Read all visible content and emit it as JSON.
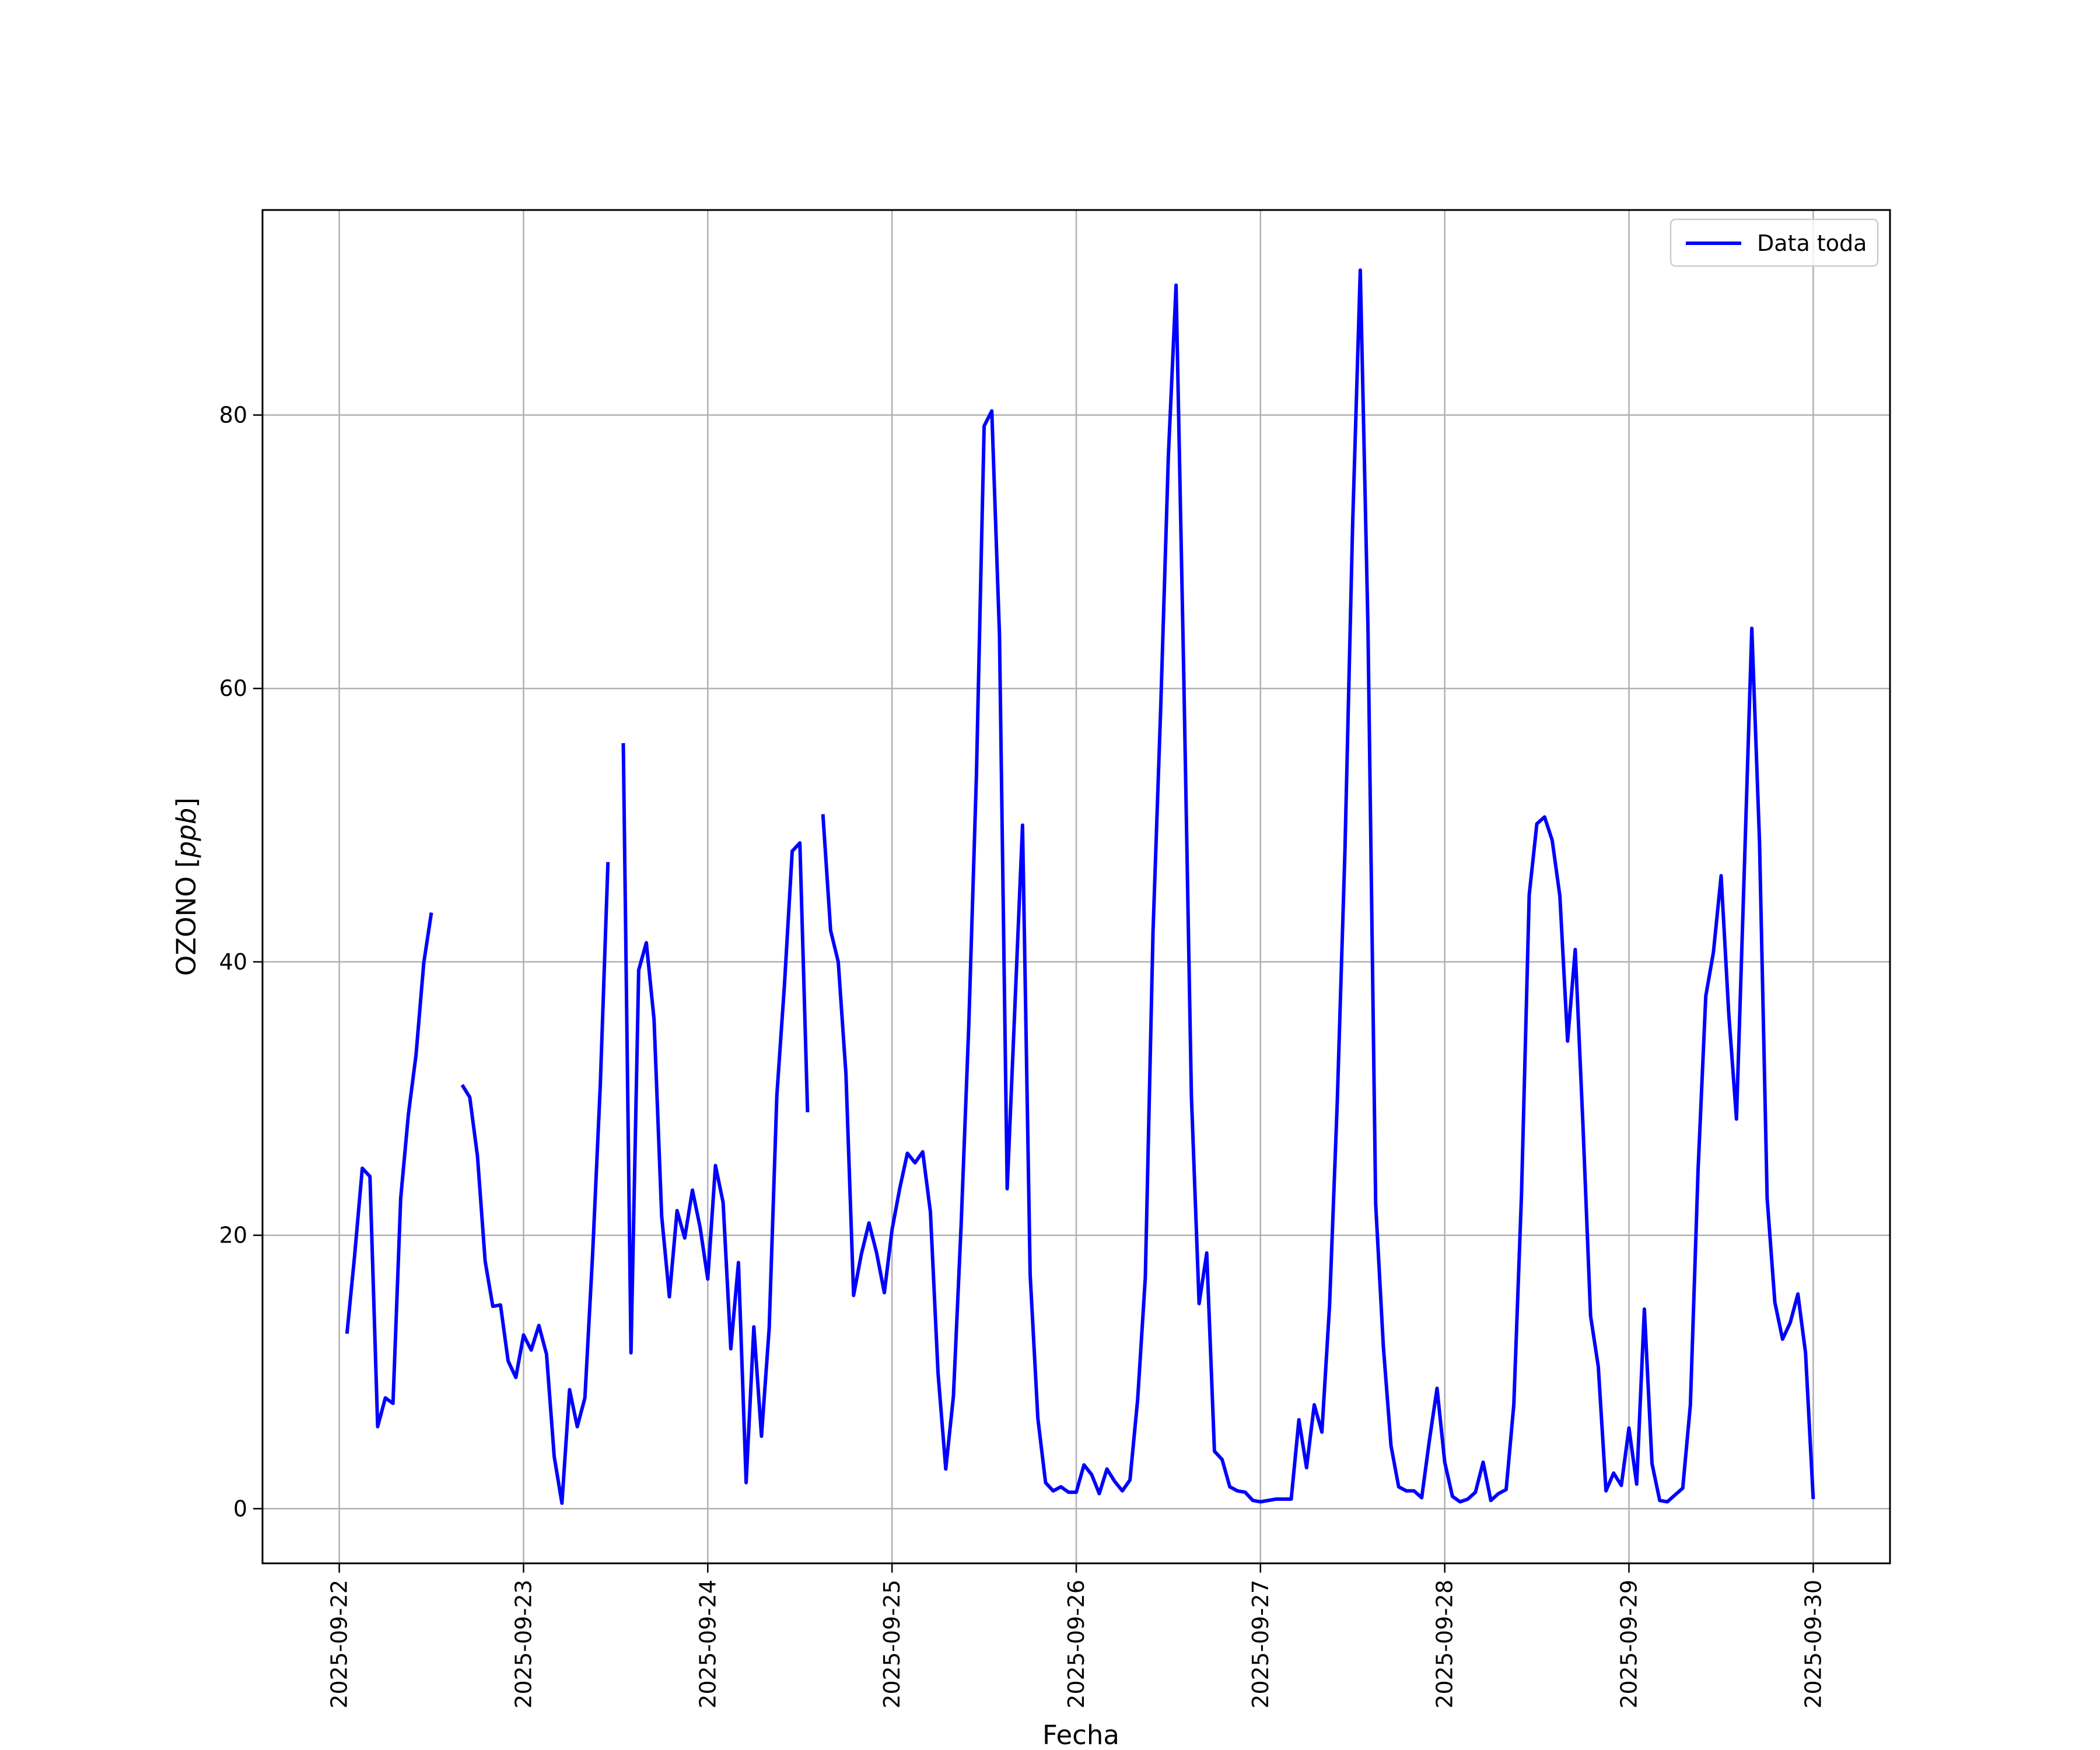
{
  "chart_data": {
    "type": "line",
    "title": "",
    "xlabel": "Fecha",
    "ylabel": "OZONO [ppb]",
    "ylabel_parts": {
      "text": "OZONO ",
      "unit_open": "[",
      "unit": "ppb",
      "unit_close": "]"
    },
    "xlim": [
      "2025-09-21T14:00",
      "2025-09-30T10:00"
    ],
    "ylim": [
      -4,
      95
    ],
    "x_ticks": [
      "2025-09-22",
      "2025-09-23",
      "2025-09-24",
      "2025-09-25",
      "2025-09-26",
      "2025-09-27",
      "2025-09-28",
      "2025-09-29",
      "2025-09-30"
    ],
    "y_ticks": [
      0,
      20,
      40,
      60,
      80
    ],
    "grid": true,
    "legend": {
      "position": "upper-right",
      "entries": [
        "Data toda"
      ]
    },
    "series": [
      {
        "name": "Data toda",
        "color": "#0000ff",
        "segments": [
          [
            [
              "2025-09-22T01:00",
              12.8
            ],
            [
              "2025-09-22T02:00",
              18.5
            ],
            [
              "2025-09-22T03:00",
              24.9
            ],
            [
              "2025-09-22T04:00",
              24.3
            ],
            [
              "2025-09-22T05:00",
              6.0
            ],
            [
              "2025-09-22T06:00",
              8.1
            ],
            [
              "2025-09-22T07:00",
              7.7
            ],
            [
              "2025-09-22T08:00",
              22.7
            ],
            [
              "2025-09-22T09:00",
              28.8
            ],
            [
              "2025-09-22T10:00",
              33.2
            ],
            [
              "2025-09-22T11:00",
              39.9
            ],
            [
              "2025-09-22T12:00",
              43.6
            ]
          ],
          [
            [
              "2025-09-22T16:00",
              31.0
            ],
            [
              "2025-09-22T17:00",
              30.1
            ],
            [
              "2025-09-22T18:00",
              25.8
            ],
            [
              "2025-09-22T19:00",
              18.1
            ],
            [
              "2025-09-22T20:00",
              14.8
            ],
            [
              "2025-09-22T21:00",
              14.9
            ],
            [
              "2025-09-22T22:00",
              10.8
            ],
            [
              "2025-09-22T23:00",
              9.6
            ],
            [
              "2025-09-23T00:00",
              12.7
            ],
            [
              "2025-09-23T01:00",
              11.6
            ],
            [
              "2025-09-23T02:00",
              13.4
            ],
            [
              "2025-09-23T03:00",
              11.3
            ],
            [
              "2025-09-23T04:00",
              3.8
            ],
            [
              "2025-09-23T05:00",
              0.4
            ],
            [
              "2025-09-23T06:00",
              8.7
            ],
            [
              "2025-09-23T07:00",
              6.0
            ],
            [
              "2025-09-23T08:00",
              8.1
            ],
            [
              "2025-09-23T09:00",
              18.6
            ],
            [
              "2025-09-23T10:00",
              31.0
            ],
            [
              "2025-09-23T11:00",
              47.3
            ]
          ],
          [
            [
              "2025-09-23T13:00",
              56.0
            ],
            [
              "2025-09-23T14:00",
              11.4
            ],
            [
              "2025-09-23T15:00",
              39.4
            ],
            [
              "2025-09-23T16:00",
              41.4
            ],
            [
              "2025-09-23T17:00",
              35.8
            ],
            [
              "2025-09-23T18:00",
              21.4
            ],
            [
              "2025-09-23T19:00",
              15.5
            ],
            [
              "2025-09-23T20:00",
              21.8
            ],
            [
              "2025-09-23T21:00",
              19.8
            ],
            [
              "2025-09-23T22:00",
              23.3
            ],
            [
              "2025-09-23T23:00",
              20.6
            ],
            [
              "2025-09-24T00:00",
              16.8
            ],
            [
              "2025-09-24T01:00",
              25.1
            ],
            [
              "2025-09-24T02:00",
              22.4
            ],
            [
              "2025-09-24T03:00",
              11.7
            ],
            [
              "2025-09-24T04:00",
              18.0
            ],
            [
              "2025-09-24T05:00",
              1.9
            ],
            [
              "2025-09-24T06:00",
              13.3
            ],
            [
              "2025-09-24T07:00",
              5.3
            ],
            [
              "2025-09-24T08:00",
              13.2
            ],
            [
              "2025-09-24T09:00",
              30.2
            ],
            [
              "2025-09-24T10:00",
              38.4
            ],
            [
              "2025-09-24T11:00",
              48.1
            ],
            [
              "2025-09-24T12:00",
              48.7
            ],
            [
              "2025-09-24T13:00",
              29.0
            ]
          ],
          [
            [
              "2025-09-24T15:00",
              50.8
            ],
            [
              "2025-09-24T16:00",
              42.3
            ],
            [
              "2025-09-24T17:00",
              40.0
            ],
            [
              "2025-09-24T18:00",
              31.8
            ],
            [
              "2025-09-24T19:00",
              15.6
            ],
            [
              "2025-09-24T20:00",
              18.6
            ],
            [
              "2025-09-24T21:00",
              20.9
            ],
            [
              "2025-09-24T22:00",
              18.7
            ],
            [
              "2025-09-24T23:00",
              15.8
            ],
            [
              "2025-09-25T00:00",
              20.4
            ],
            [
              "2025-09-25T01:00",
              23.4
            ],
            [
              "2025-09-25T02:00",
              26.0
            ],
            [
              "2025-09-25T03:00",
              25.3
            ],
            [
              "2025-09-25T04:00",
              26.1
            ],
            [
              "2025-09-25T05:00",
              21.7
            ],
            [
              "2025-09-25T06:00",
              9.9
            ],
            [
              "2025-09-25T07:00",
              2.9
            ],
            [
              "2025-09-25T08:00",
              8.2
            ],
            [
              "2025-09-25T09:00",
              20.7
            ],
            [
              "2025-09-25T10:00",
              35.4
            ],
            [
              "2025-09-25T11:00",
              53.7
            ],
            [
              "2025-09-25T12:00",
              79.2
            ],
            [
              "2025-09-25T13:00",
              80.3
            ],
            [
              "2025-09-25T14:00",
              63.9
            ],
            [
              "2025-09-25T15:00",
              23.4
            ],
            [
              "2025-09-25T16:00",
              36.6
            ],
            [
              "2025-09-25T17:00",
              50.0
            ],
            [
              "2025-09-25T18:00",
              17.1
            ],
            [
              "2025-09-25T19:00",
              6.6
            ],
            [
              "2025-09-25T20:00",
              1.9
            ],
            [
              "2025-09-25T21:00",
              1.3
            ],
            [
              "2025-09-25T22:00",
              1.6
            ],
            [
              "2025-09-25T23:00",
              1.2
            ],
            [
              "2025-09-26T00:00",
              1.2
            ],
            [
              "2025-09-26T01:00",
              3.2
            ],
            [
              "2025-09-26T02:00",
              2.5
            ],
            [
              "2025-09-26T03:00",
              1.1
            ],
            [
              "2025-09-26T04:00",
              2.9
            ],
            [
              "2025-09-26T05:00",
              2.0
            ],
            [
              "2025-09-26T06:00",
              1.3
            ],
            [
              "2025-09-26T07:00",
              2.1
            ],
            [
              "2025-09-26T08:00",
              8.0
            ],
            [
              "2025-09-26T09:00",
              16.9
            ],
            [
              "2025-09-26T10:00",
              42.2
            ],
            [
              "2025-09-26T11:00",
              58.6
            ],
            [
              "2025-09-26T12:00",
              77.0
            ],
            [
              "2025-09-26T13:00",
              89.5
            ],
            [
              "2025-09-26T14:00",
              61.2
            ],
            [
              "2025-09-26T15:00",
              30.2
            ],
            [
              "2025-09-26T16:00",
              15.0
            ],
            [
              "2025-09-26T17:00",
              18.7
            ],
            [
              "2025-09-26T18:00",
              4.2
            ],
            [
              "2025-09-26T19:00",
              3.6
            ],
            [
              "2025-09-26T20:00",
              1.6
            ],
            [
              "2025-09-26T21:00",
              1.3
            ],
            [
              "2025-09-26T22:00",
              1.2
            ],
            [
              "2025-09-26T23:00",
              0.6
            ],
            [
              "2025-09-27T00:00",
              0.5
            ],
            [
              "2025-09-27T02:00",
              0.7
            ],
            [
              "2025-09-27T03:00",
              0.7
            ],
            [
              "2025-09-27T04:00",
              0.7
            ],
            [
              "2025-09-27T05:00",
              6.5
            ],
            [
              "2025-09-27T06:00",
              3.0
            ],
            [
              "2025-09-27T07:00",
              7.6
            ],
            [
              "2025-09-27T08:00",
              5.6
            ],
            [
              "2025-09-27T09:00",
              14.9
            ],
            [
              "2025-09-27T10:00",
              29.8
            ],
            [
              "2025-09-27T11:00",
              48.1
            ],
            [
              "2025-09-27T12:00",
              72.0
            ],
            [
              "2025-09-27T13:00",
              90.6
            ],
            [
              "2025-09-27T14:00",
              64.4
            ],
            [
              "2025-09-27T15:00",
              22.3
            ],
            [
              "2025-09-27T16:00",
              11.9
            ],
            [
              "2025-09-27T17:00",
              4.6
            ],
            [
              "2025-09-27T18:00",
              1.6
            ],
            [
              "2025-09-27T19:00",
              1.3
            ],
            [
              "2025-09-27T20:00",
              1.3
            ],
            [
              "2025-09-27T21:00",
              0.8
            ],
            [
              "2025-09-27T22:00",
              5.0
            ],
            [
              "2025-09-27T23:00",
              8.8
            ],
            [
              "2025-09-28T00:00",
              3.4
            ],
            [
              "2025-09-28T01:00",
              0.9
            ],
            [
              "2025-09-28T02:00",
              0.5
            ],
            [
              "2025-09-28T03:00",
              0.7
            ],
            [
              "2025-09-28T04:00",
              1.2
            ],
            [
              "2025-09-28T05:00",
              3.4
            ],
            [
              "2025-09-28T06:00",
              0.6
            ],
            [
              "2025-09-28T07:00",
              1.1
            ],
            [
              "2025-09-28T08:00",
              1.4
            ],
            [
              "2025-09-28T09:00",
              7.6
            ],
            [
              "2025-09-28T10:00",
              23.0
            ],
            [
              "2025-09-28T11:00",
              44.9
            ],
            [
              "2025-09-28T12:00",
              50.1
            ],
            [
              "2025-09-28T13:00",
              50.6
            ],
            [
              "2025-09-28T14:00",
              48.9
            ],
            [
              "2025-09-28T15:00",
              44.8
            ],
            [
              "2025-09-28T16:00",
              34.2
            ],
            [
              "2025-09-28T17:00",
              40.9
            ],
            [
              "2025-09-28T18:00",
              28.1
            ],
            [
              "2025-09-28T19:00",
              14.1
            ],
            [
              "2025-09-28T20:00",
              10.4
            ],
            [
              "2025-09-28T21:00",
              1.3
            ],
            [
              "2025-09-28T22:00",
              2.6
            ],
            [
              "2025-09-28T23:00",
              1.7
            ],
            [
              "2025-09-29T00:00",
              5.9
            ],
            [
              "2025-09-29T01:00",
              1.8
            ],
            [
              "2025-09-29T02:00",
              14.6
            ],
            [
              "2025-09-29T03:00",
              3.3
            ],
            [
              "2025-09-29T04:00",
              0.6
            ],
            [
              "2025-09-29T05:00",
              0.5
            ],
            [
              "2025-09-29T06:00",
              1.0
            ],
            [
              "2025-09-29T07:00",
              1.5
            ],
            [
              "2025-09-29T08:00",
              7.6
            ],
            [
              "2025-09-29T09:00",
              24.8
            ],
            [
              "2025-09-29T10:00",
              37.5
            ],
            [
              "2025-09-29T11:00",
              40.7
            ],
            [
              "2025-09-29T12:00",
              46.3
            ],
            [
              "2025-09-29T13:00",
              36.2
            ],
            [
              "2025-09-29T14:00",
              28.5
            ],
            [
              "2025-09-29T15:00",
              46.4
            ],
            [
              "2025-09-29T16:00",
              64.4
            ],
            [
              "2025-09-29T17:00",
              48.8
            ],
            [
              "2025-09-29T18:00",
              22.7
            ],
            [
              "2025-09-29T19:00",
              15.1
            ],
            [
              "2025-09-29T20:00",
              12.4
            ],
            [
              "2025-09-29T21:00",
              13.6
            ],
            [
              "2025-09-29T22:00",
              15.7
            ],
            [
              "2025-09-29T23:00",
              11.4
            ],
            [
              "2025-09-30T00:00",
              0.7
            ]
          ]
        ]
      }
    ]
  }
}
